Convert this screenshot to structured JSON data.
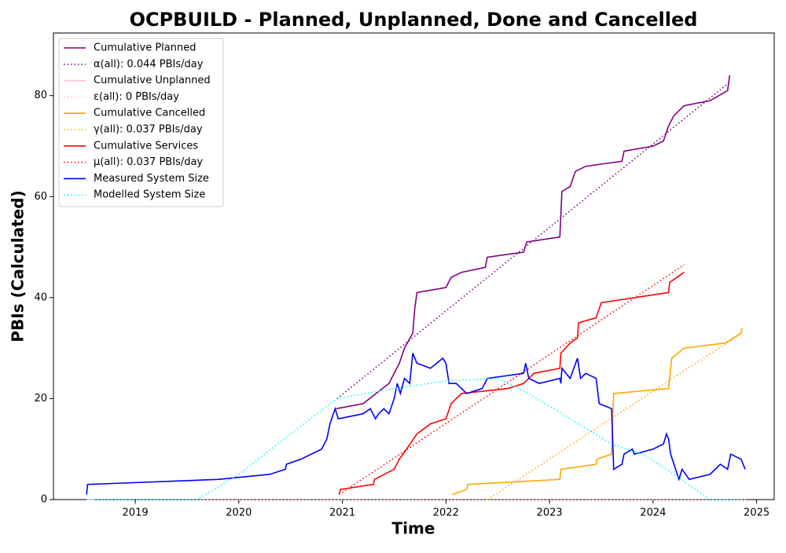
{
  "chart_data": {
    "type": "line",
    "title": "OCPBUILD - Planned, Unplanned, Done  and Cancelled",
    "x_label": "Time",
    "y_label": "PBIs (Calculated)",
    "xlim": [
      2018.21,
      2025.17
    ],
    "xticks": [
      2019,
      2020,
      2021,
      2022,
      2023,
      2024,
      2025
    ],
    "ylim": [
      0,
      92.4
    ],
    "yticks": [
      0,
      20,
      40,
      60,
      80
    ],
    "legend": "upper-left",
    "series": [
      {
        "name": "Cumulative Planned",
        "color": "purple",
        "style": "solid",
        "x": [
          2020.94,
          2021.2,
          2021.45,
          2021.5,
          2021.55,
          2021.6,
          2021.68,
          2021.7,
          2021.72,
          2022.0,
          2022.05,
          2022.15,
          2022.38,
          2022.4,
          2022.75,
          2022.78,
          2023.1,
          2023.12,
          2023.2,
          2023.25,
          2023.35,
          2023.7,
          2023.72,
          2024.0,
          2024.1,
          2024.15,
          2024.2,
          2024.3,
          2024.55,
          2024.72,
          2024.74
        ],
        "values": [
          18,
          19,
          23,
          25,
          27,
          30,
          33,
          38,
          41,
          42,
          44,
          45,
          46,
          48,
          49,
          51,
          52,
          61,
          62,
          65,
          66,
          67,
          69,
          70,
          71,
          74,
          76,
          78,
          79,
          81,
          84
        ]
      },
      {
        "name": "α(all): 0.044 PBIs/day",
        "color": "purple",
        "style": "dotted",
        "x": [
          2020.95,
          2024.73
        ],
        "values": [
          20,
          82.5
        ]
      },
      {
        "name": "Cumulative Unplanned",
        "color": "pink",
        "style": "solid",
        "x": [
          2018.53,
          2018.6
        ],
        "values": [
          0,
          0
        ]
      },
      {
        "name": "ε(all): 0 PBIs/day",
        "color": "pink",
        "style": "dotted",
        "x": [
          2018.53,
          2024.9
        ],
        "values": [
          0,
          0
        ]
      },
      {
        "name": "Cumulative Cancelled",
        "color": "orange",
        "style": "solid",
        "x": [
          2022.06,
          2022.2,
          2022.21,
          2023.1,
          2023.11,
          2023.45,
          2023.46,
          2023.6,
          2023.61,
          2023.62,
          2024.15,
          2024.18,
          2024.3,
          2024.7,
          2024.85,
          2024.86
        ],
        "values": [
          1,
          2,
          3,
          4,
          6,
          7,
          8,
          9,
          16,
          21,
          22,
          28,
          30,
          31,
          33,
          34
        ]
      },
      {
        "name": "γ(all): 0.037 PBIs/day",
        "color": "orange",
        "style": "dotted",
        "x": [
          2022.4,
          2024.86
        ],
        "values": [
          0,
          33
        ]
      },
      {
        "name": "Cumulative Services",
        "color": "red",
        "style": "solid",
        "x": [
          2020.97,
          2020.98,
          2021.3,
          2021.31,
          2021.5,
          2021.55,
          2021.62,
          2021.72,
          2021.85,
          2022.0,
          2022.05,
          2022.15,
          2022.6,
          2022.75,
          2022.85,
          2023.1,
          2023.11,
          2023.2,
          2023.27,
          2023.28,
          2023.45,
          2023.5,
          2024.15,
          2024.16,
          2024.3
        ],
        "values": [
          1,
          2,
          3,
          4,
          6,
          8,
          10,
          13,
          15,
          16,
          19,
          21,
          22,
          23,
          25,
          26,
          29,
          31,
          32,
          35,
          36,
          39,
          41,
          43,
          45
        ]
      },
      {
        "name": "μ(all): 0.037 PBIs/day",
        "color": "red",
        "style": "dotted",
        "x": [
          2020.97,
          2024.3
        ],
        "values": [
          1,
          46.5
        ]
      },
      {
        "name": "Measured System Size",
        "color": "blue",
        "style": "solid",
        "x": [
          2018.53,
          2018.54,
          2019.8,
          2020.3,
          2020.45,
          2020.46,
          2020.6,
          2020.8,
          2020.85,
          2020.88,
          2020.93,
          2020.96,
          2021.2,
          2021.27,
          2021.32,
          2021.35,
          2021.4,
          2021.45,
          2021.5,
          2021.53,
          2021.56,
          2021.6,
          2021.65,
          2021.68,
          2021.72,
          2021.85,
          2021.97,
          2022.0,
          2022.03,
          2022.1,
          2022.2,
          2022.35,
          2022.4,
          2022.75,
          2022.77,
          2022.8,
          2022.9,
          2023.1,
          2023.11,
          2023.12,
          2023.2,
          2023.27,
          2023.3,
          2023.35,
          2023.45,
          2023.48,
          2023.6,
          2023.62,
          2023.7,
          2023.72,
          2023.8,
          2023.82,
          2024.0,
          2024.1,
          2024.13,
          2024.15,
          2024.17,
          2024.25,
          2024.28,
          2024.35,
          2024.55,
          2024.65,
          2024.72,
          2024.75,
          2024.85,
          2024.89
        ],
        "values": [
          1,
          3,
          4,
          5,
          6,
          7,
          8,
          10,
          12,
          15,
          18,
          16,
          17,
          18,
          16,
          17,
          18,
          17,
          20,
          23,
          21,
          24,
          23,
          29,
          27,
          26,
          28,
          27,
          23,
          23,
          21,
          22,
          24,
          25,
          27,
          24,
          23,
          24,
          23,
          26,
          24,
          28,
          24,
          25,
          24,
          19,
          18,
          6,
          7,
          9,
          10,
          9,
          10,
          11,
          13,
          12,
          9,
          4,
          6,
          4,
          5,
          7,
          6,
          9,
          8,
          6
        ]
      },
      {
        "name": "Modelled System Size",
        "color": "cyan",
        "style": "dotted",
        "x": [
          2018.53,
          2019.6,
          2020.0,
          2020.5,
          2020.95,
          2021.5,
          2022.0,
          2022.5,
          2022.8,
          2023.2,
          2023.6,
          2023.9,
          2024.2,
          2024.55,
          2024.85
        ],
        "values": [
          0,
          0,
          5,
          13,
          20,
          22,
          23.5,
          24,
          21,
          16,
          11,
          9,
          5,
          0,
          0
        ]
      }
    ]
  }
}
